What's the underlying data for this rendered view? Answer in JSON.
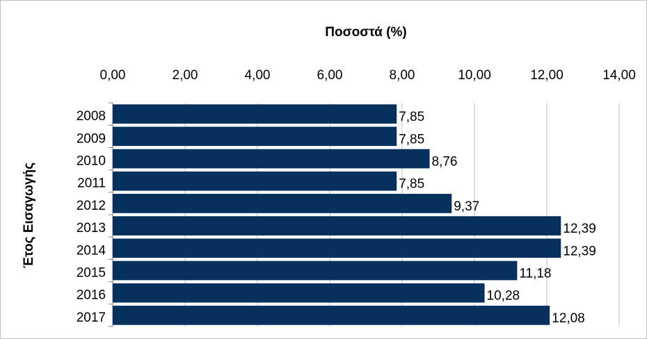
{
  "chart_data": {
    "type": "bar",
    "orientation": "horizontal",
    "title": "Ποσοστά (%)",
    "y_label": "Έτος Εισαγωγής",
    "categories": [
      "2008",
      "2009",
      "2010",
      "2011",
      "2012",
      "2013",
      "2014",
      "2015",
      "2016",
      "2017"
    ],
    "values": [
      7.85,
      7.85,
      8.76,
      7.85,
      9.37,
      12.39,
      12.39,
      11.18,
      10.28,
      12.08
    ],
    "value_labels": [
      "7,85",
      "7,85",
      "8,76",
      "7,85",
      "9,37",
      "12,39",
      "12,39",
      "11,18",
      "10,28",
      "12,08"
    ],
    "color": "#06305e",
    "xlim": [
      0,
      14
    ],
    "xticks": [
      {
        "value": 0,
        "label": "0,00"
      },
      {
        "value": 2,
        "label": "2,00"
      },
      {
        "value": 4,
        "label": "4,00"
      },
      {
        "value": 6,
        "label": "6,00"
      },
      {
        "value": 8,
        "label": "8,00"
      },
      {
        "value": 10,
        "label": "10,00"
      },
      {
        "value": 12,
        "label": "12,00"
      },
      {
        "value": 14,
        "label": "14,00"
      }
    ],
    "grid": true
  }
}
